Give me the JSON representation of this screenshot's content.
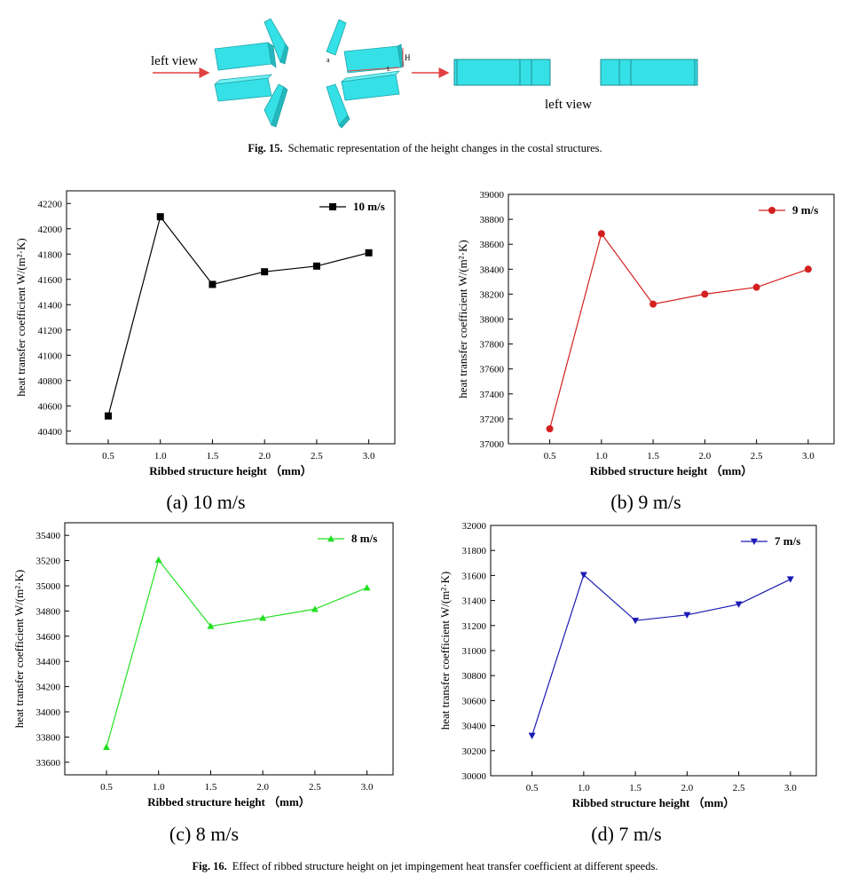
{
  "schematic": {
    "left_label_1": "left view",
    "left_label_2": "left view",
    "dim_h": "H",
    "dim_l": "L",
    "dim_a": "a"
  },
  "fig15": {
    "num": "Fig. 15.",
    "text": "Schematic representation of the height changes in the costal structures."
  },
  "fig16": {
    "num": "Fig. 16.",
    "text": "Effect of ribbed structure height on jet impingement heat transfer coefficient at different speeds."
  },
  "colors": {
    "a": "#000000",
    "b": "#d42020",
    "c": "#22e022",
    "d": "#1a1ab4",
    "block": "#35e0e6",
    "arrow": "#e04040"
  },
  "chart_data": [
    {
      "type": "line",
      "sub_label": "(a) 10 m/s",
      "marker": "square",
      "x": [
        0.5,
        1.0,
        1.5,
        2.0,
        2.5,
        3.0
      ],
      "x_ticks": [
        "0.5",
        "1.0",
        "1.5",
        "2.0",
        "2.5",
        "3.0"
      ],
      "series": [
        {
          "name": "10 m/s",
          "values": [
            40520,
            42095,
            41560,
            41660,
            41705,
            41810
          ]
        }
      ],
      "xlabel": "Ribbed structure height （mm）",
      "ylabel": "heat transfer coefficient W/(m²·K)",
      "ylim": [
        40300,
        42300
      ],
      "y_ticks": [
        "40400",
        "40600",
        "40800",
        "41000",
        "41200",
        "41400",
        "41600",
        "41800",
        "42000",
        "42200"
      ],
      "legend": "top-right"
    },
    {
      "type": "line",
      "sub_label": "(b) 9 m/s",
      "marker": "circle",
      "x": [
        0.5,
        1.0,
        1.5,
        2.0,
        2.5,
        3.0
      ],
      "x_ticks": [
        "0.5",
        "1.0",
        "1.5",
        "2.0",
        "2.5",
        "3.0"
      ],
      "series": [
        {
          "name": "9 m/s",
          "values": [
            37120,
            38685,
            38120,
            38200,
            38255,
            38400
          ]
        }
      ],
      "xlabel": "Ribbed structure height （mm）",
      "ylabel": "heat transfer coefficient W/(m²·K)",
      "ylim": [
        37000,
        39000
      ],
      "y_ticks": [
        "37000",
        "37200",
        "37400",
        "37600",
        "37800",
        "38000",
        "38200",
        "38400",
        "38600",
        "38800",
        "39000"
      ],
      "legend": "top-right"
    },
    {
      "type": "line",
      "sub_label": "(c) 8 m/s",
      "marker": "triangle-up",
      "x": [
        0.5,
        1.0,
        1.5,
        2.0,
        2.5,
        3.0
      ],
      "x_ticks": [
        "0.5",
        "1.0",
        "1.5",
        "2.0",
        "2.5",
        "3.0"
      ],
      "series": [
        {
          "name": "8 m/s",
          "values": [
            33720,
            35205,
            34680,
            34745,
            34815,
            34985
          ]
        }
      ],
      "xlabel": "Ribbed structure height （mm）",
      "ylabel": "heat transfer coefficient  W/(m²·K)",
      "ylim": [
        33500,
        35500
      ],
      "y_ticks": [
        "33600",
        "33800",
        "34000",
        "34200",
        "34400",
        "34600",
        "34800",
        "35000",
        "35200",
        "35400"
      ],
      "legend": "top-right"
    },
    {
      "type": "line",
      "sub_label": "(d) 7 m/s",
      "marker": "triangle-down",
      "x": [
        0.5,
        1.0,
        1.5,
        2.0,
        2.5,
        3.0
      ],
      "x_ticks": [
        "0.5",
        "1.0",
        "1.5",
        "2.0",
        "2.5",
        "3.0"
      ],
      "series": [
        {
          "name": "7 m/s",
          "values": [
            30320,
            31605,
            31240,
            31285,
            31370,
            31570
          ]
        }
      ],
      "xlabel": "Ribbed structure height （mm）",
      "ylabel": "heat transfer coefficient  W/(m²·K)",
      "ylim": [
        30000,
        32000
      ],
      "y_ticks": [
        "30000",
        "30200",
        "30400",
        "30600",
        "30800",
        "31000",
        "31200",
        "31400",
        "31600",
        "31800",
        "32000"
      ],
      "legend": "top-right"
    }
  ]
}
